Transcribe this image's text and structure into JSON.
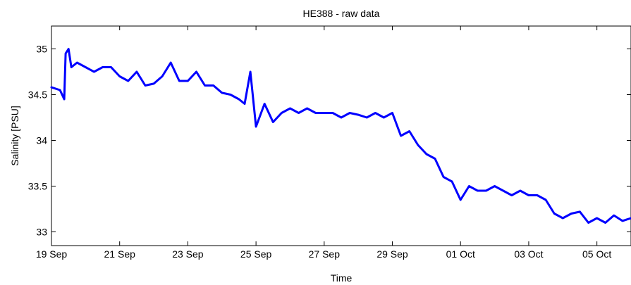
{
  "chart_data": {
    "type": "line",
    "title": "HE388 - raw data",
    "xlabel": "Time",
    "ylabel": "Salinity [PSU]",
    "x_axis_kind": "date",
    "xlim": [
      "2012-09-19",
      "2012-10-06"
    ],
    "ylim": [
      32.85,
      35.25
    ],
    "xticks": [
      {
        "date": "2012-09-19",
        "label": "19 Sep"
      },
      {
        "date": "2012-09-21",
        "label": "21 Sep"
      },
      {
        "date": "2012-09-23",
        "label": "23 Sep"
      },
      {
        "date": "2012-09-25",
        "label": "25 Sep"
      },
      {
        "date": "2012-09-27",
        "label": "27 Sep"
      },
      {
        "date": "2012-09-29",
        "label": "29 Sep"
      },
      {
        "date": "2012-10-01",
        "label": "01 Oct"
      },
      {
        "date": "2012-10-03",
        "label": "03 Oct"
      },
      {
        "date": "2012-10-05",
        "label": "05 Oct"
      }
    ],
    "yticks": [
      {
        "value": 33,
        "label": "33"
      },
      {
        "value": 33.5,
        "label": "33.5"
      },
      {
        "value": 34,
        "label": "34"
      },
      {
        "value": 34.5,
        "label": "34.5"
      },
      {
        "value": 35,
        "label": "35"
      }
    ],
    "grid": false,
    "legend": "none",
    "series": [
      {
        "color": "#0000ff",
        "x": [
          "2012-09-19 00:00",
          "2012-09-19 06:00",
          "2012-09-19 09:00",
          "2012-09-19 10:00",
          "2012-09-19 12:00",
          "2012-09-19 14:00",
          "2012-09-19 18:00",
          "2012-09-20 00:00",
          "2012-09-20 06:00",
          "2012-09-20 12:00",
          "2012-09-20 18:00",
          "2012-09-21 00:00",
          "2012-09-21 06:00",
          "2012-09-21 12:00",
          "2012-09-21 18:00",
          "2012-09-22 00:00",
          "2012-09-22 06:00",
          "2012-09-22 12:00",
          "2012-09-22 18:00",
          "2012-09-23 00:00",
          "2012-09-23 06:00",
          "2012-09-23 12:00",
          "2012-09-23 18:00",
          "2012-09-24 00:00",
          "2012-09-24 06:00",
          "2012-09-24 12:00",
          "2012-09-24 16:00",
          "2012-09-24 20:00",
          "2012-09-25 00:00",
          "2012-09-25 06:00",
          "2012-09-25 12:00",
          "2012-09-25 18:00",
          "2012-09-26 00:00",
          "2012-09-26 06:00",
          "2012-09-26 12:00",
          "2012-09-26 18:00",
          "2012-09-27 00:00",
          "2012-09-27 06:00",
          "2012-09-27 12:00",
          "2012-09-27 18:00",
          "2012-09-28 00:00",
          "2012-09-28 06:00",
          "2012-09-28 12:00",
          "2012-09-28 18:00",
          "2012-09-29 00:00",
          "2012-09-29 06:00",
          "2012-09-29 12:00",
          "2012-09-29 18:00",
          "2012-09-30 00:00",
          "2012-09-30 06:00",
          "2012-09-30 12:00",
          "2012-09-30 18:00",
          "2012-10-01 00:00",
          "2012-10-01 06:00",
          "2012-10-01 12:00",
          "2012-10-01 18:00",
          "2012-10-02 00:00",
          "2012-10-02 06:00",
          "2012-10-02 12:00",
          "2012-10-02 18:00",
          "2012-10-03 00:00",
          "2012-10-03 06:00",
          "2012-10-03 12:00",
          "2012-10-03 18:00",
          "2012-10-04 00:00",
          "2012-10-04 06:00",
          "2012-10-04 12:00",
          "2012-10-04 18:00",
          "2012-10-05 00:00",
          "2012-10-05 06:00",
          "2012-10-05 12:00",
          "2012-10-05 18:00",
          "2012-10-06 00:00"
        ],
        "y": [
          34.58,
          34.55,
          34.45,
          34.95,
          35.0,
          34.8,
          34.85,
          34.8,
          34.75,
          34.8,
          34.8,
          34.7,
          34.65,
          34.75,
          34.6,
          34.62,
          34.7,
          34.85,
          34.65,
          34.65,
          34.75,
          34.6,
          34.6,
          34.52,
          34.5,
          34.45,
          34.4,
          34.75,
          34.15,
          34.4,
          34.2,
          34.3,
          34.35,
          34.3,
          34.35,
          34.3,
          34.3,
          34.3,
          34.25,
          34.3,
          34.28,
          34.25,
          34.3,
          34.25,
          34.3,
          34.05,
          34.1,
          33.95,
          33.85,
          33.8,
          33.6,
          33.55,
          33.35,
          33.5,
          33.45,
          33.45,
          33.5,
          33.45,
          33.4,
          33.45,
          33.4,
          33.4,
          33.35,
          33.2,
          33.15,
          33.2,
          33.22,
          33.1,
          33.15,
          33.1,
          33.18,
          33.12,
          33.15
        ]
      }
    ]
  }
}
